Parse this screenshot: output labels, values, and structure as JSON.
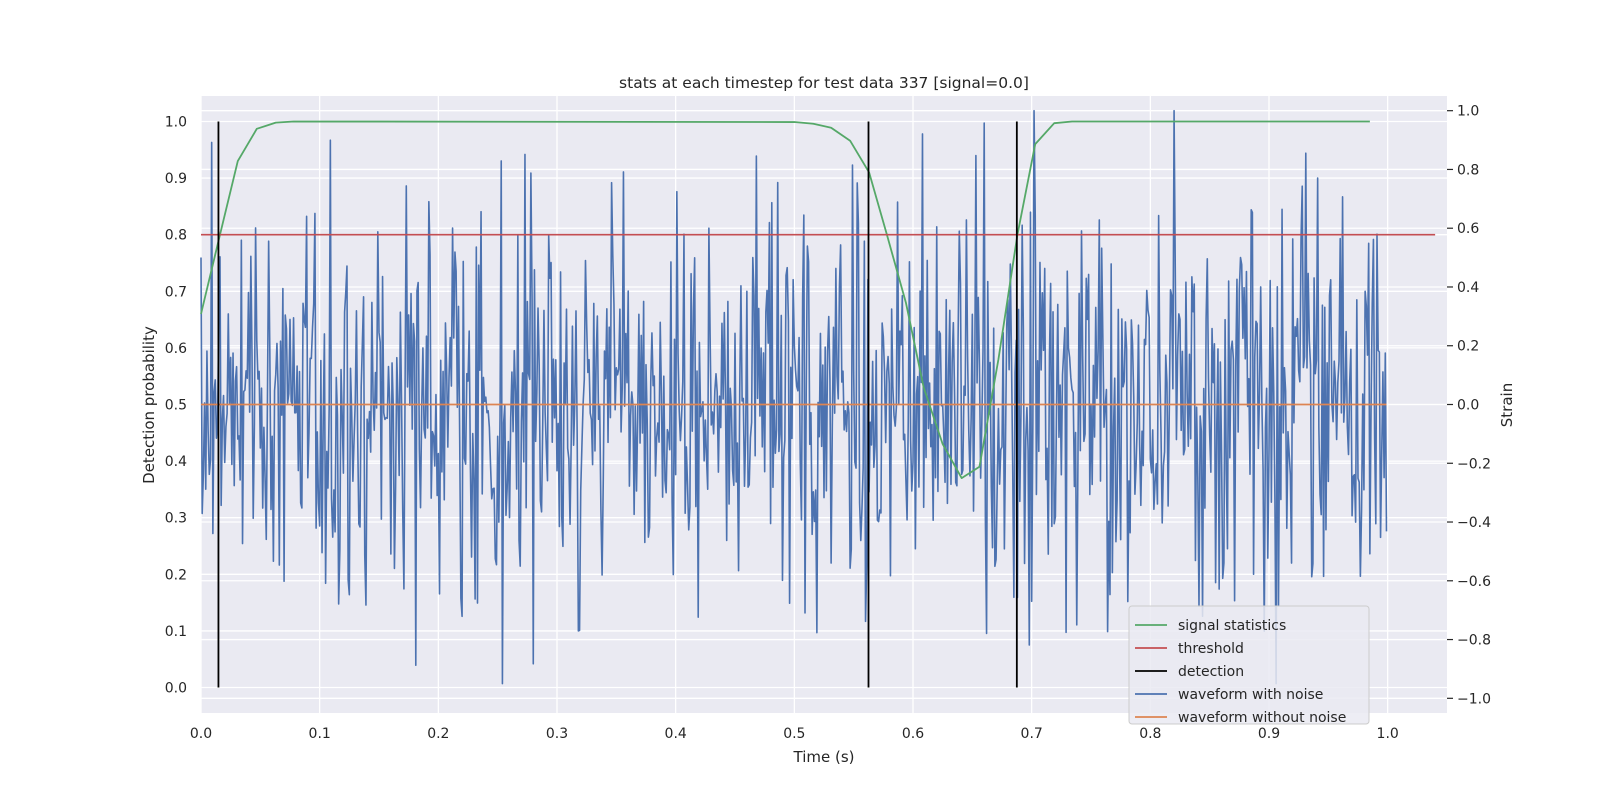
{
  "chart_data": {
    "type": "line",
    "title": "stats at each timestep for test data 337 [signal=0.0]",
    "xlabel": "Time (s)",
    "ylabel": "Detection probability",
    "y2label": "Strain",
    "xlim": [
      0.0,
      1.05
    ],
    "ylim": [
      -0.045,
      1.045
    ],
    "y2lim": [
      -1.05,
      1.05
    ],
    "xticks": [
      "0.0",
      "0.1",
      "0.2",
      "0.3",
      "0.4",
      "0.5",
      "0.6",
      "0.7",
      "0.8",
      "0.9",
      "1.0"
    ],
    "yticks": [
      "0.0",
      "0.1",
      "0.2",
      "0.3",
      "0.4",
      "0.5",
      "0.6",
      "0.7",
      "0.8",
      "0.9",
      "1.0"
    ],
    "y2ticks": [
      "−1.0",
      "−0.8",
      "−0.6",
      "−0.4",
      "−0.2",
      "0.0",
      "0.2",
      "0.4",
      "0.6",
      "0.8",
      "1.0"
    ],
    "grid": true,
    "legend_position": "lower-right",
    "series": [
      {
        "name": "signal statistics",
        "color": "#55a868",
        "axis": "left",
        "x": [
          0.0,
          0.016,
          0.031,
          0.047,
          0.063,
          0.078,
          0.5,
          0.516,
          0.531,
          0.547,
          0.563,
          0.578,
          0.594,
          0.609,
          0.625,
          0.641,
          0.656,
          0.672,
          0.688,
          0.703,
          0.719,
          0.734,
          0.985
        ],
        "y": [
          0.66,
          0.8,
          0.93,
          0.987,
          0.998,
          1.0,
          0.999,
          0.996,
          0.989,
          0.966,
          0.91,
          0.8,
          0.68,
          0.53,
          0.43,
          0.37,
          0.39,
          0.58,
          0.8,
          0.96,
          0.997,
          1.0,
          1.0
        ]
      },
      {
        "name": "threshold",
        "color": "#c44e52",
        "axis": "left",
        "x": [
          0.0,
          1.04
        ],
        "y": [
          0.8,
          0.8
        ]
      },
      {
        "name": "detection",
        "color": "#000000",
        "axis": "left",
        "type": "vlines",
        "x": [
          0.0147,
          0.5625,
          0.6875
        ],
        "ymin": 0.0,
        "ymax": 1.0
      },
      {
        "name": "waveform with noise",
        "color": "#4c72b0",
        "axis": "right",
        "type": "noise",
        "n_points": 1000,
        "x_range": [
          0.0,
          0.999
        ],
        "mean": 0.0,
        "std": 0.32,
        "min": -0.95,
        "max": 1.0
      },
      {
        "name": "waveform without noise",
        "color": "#dd8452",
        "axis": "right",
        "x": [
          0.0,
          0.999
        ],
        "y": [
          0.0,
          0.0
        ]
      }
    ]
  }
}
